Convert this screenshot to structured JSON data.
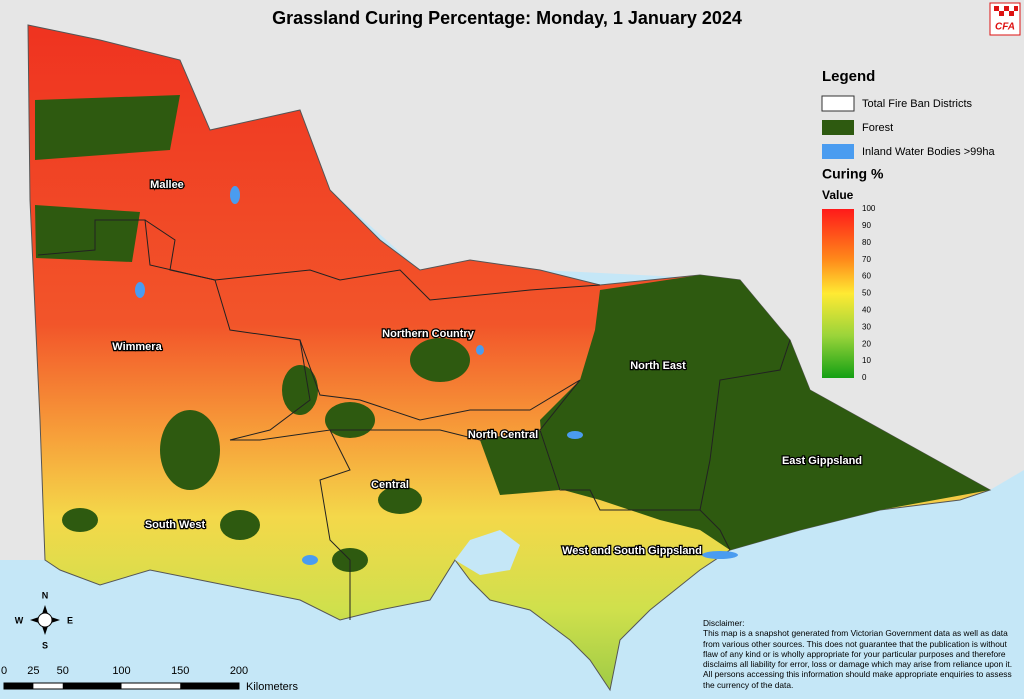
{
  "title": "Grassland Curing Percentage: Monday, 1 January 2024",
  "logo": "CFA",
  "legend": {
    "title": "Legend",
    "items": [
      "Total Fire Ban Districts",
      "Forest",
      "Inland Water Bodies >99ha"
    ],
    "curing_title": "Curing %",
    "value_label": "Value",
    "scale": [
      100,
      90,
      80,
      70,
      60,
      50,
      40,
      30,
      20,
      10,
      0
    ]
  },
  "districts": [
    "Mallee",
    "Wimmera",
    "Northern Country",
    "North East",
    "North Central",
    "Central",
    "East Gippsland",
    "South West",
    "West and South Gippsland"
  ],
  "compass": [
    "N",
    "E",
    "S",
    "W"
  ],
  "scale_bar": {
    "ticks": [
      0,
      25,
      50,
      100,
      150,
      200
    ],
    "unit": "Kilometers"
  },
  "disclaimer": {
    "title": "Disclaimer:",
    "text": "This map is a snapshot generated from Victorian Government data as well as data from various other sources. This does not guarantee that the publication is without flaw of any kind or is wholly appropriate for your particular purposes and therefore disclaims all liability for error, loss or damage which may arise from reliance upon it. All persons accessing this information should make appropriate enquiries to assess the currency of the data."
  }
}
